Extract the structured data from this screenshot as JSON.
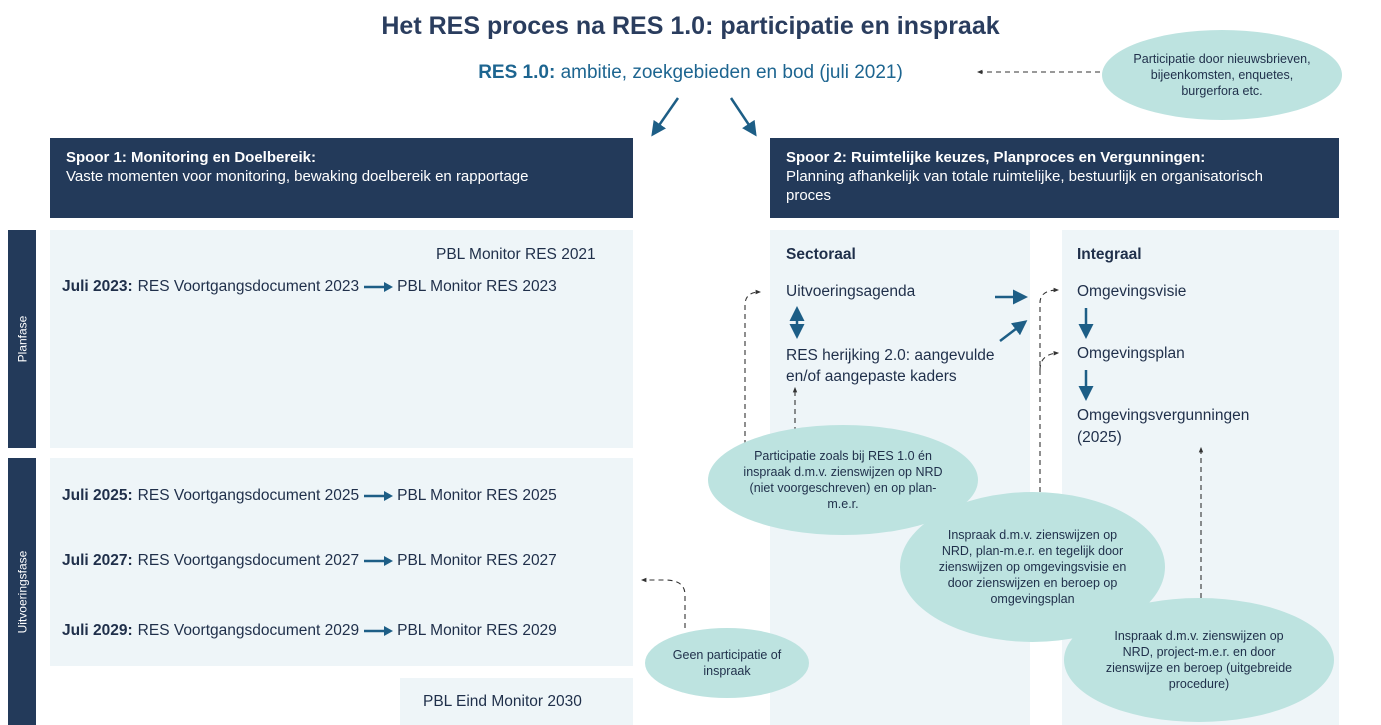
{
  "title": "Het RES proces na RES 1.0: participatie en inspraak",
  "res10": {
    "label": "RES 1.0:",
    "text": "ambitie, zoekgebieden en bod (juli 2021)"
  },
  "top_note": "Participatie door nieuwsbrieven, bijeenkomsten, enquetes, burgerfora etc.",
  "spoor1": {
    "title": "Spoor 1: Monitoring en Doelbereik:",
    "subtitle": "Vaste momenten voor monitoring, bewaking doelbereik en rapportage"
  },
  "spoor2": {
    "title": "Spoor 2: Ruimtelijke keuzes, Planproces en Vergunningen:",
    "subtitle": "Planning afhankelijk van totale ruimtelijke, bestuurlijk en organisatorisch proces"
  },
  "phases": [
    "Planfase",
    "Uitvoeringsfase"
  ],
  "monitor_2021": "PBL Monitor RES 2021",
  "rows": [
    {
      "date": "Juli 2023:",
      "document": "RES Voortgangsdocument 2023",
      "monitor": "PBL Monitor RES 2023"
    },
    {
      "date": "Juli 2025:",
      "document": "RES Voortgangsdocument 2025",
      "monitor": "PBL Monitor RES 2025"
    },
    {
      "date": "Juli 2027:",
      "document": "RES Voortgangsdocument 2027",
      "monitor": "PBL Monitor RES 2027"
    },
    {
      "date": "Juli 2029:",
      "document": "RES Voortgangsdocument 2029",
      "monitor": "PBL Monitor RES 2029"
    }
  ],
  "eind_monitor": "PBL Eind Monitor 2030",
  "sectoraal": {
    "title": "Sectoraal",
    "items": [
      "Uitvoeringsagenda",
      "RES herijking 2.0: aangevulde en/of aangepaste kaders"
    ]
  },
  "integraal": {
    "title": "Integraal",
    "items": [
      "Omgevingsvisie",
      "Omgevingsplan",
      "Omgevingsvergunningen (2025)"
    ]
  },
  "notes": [
    "Participatie zoals bij RES 1.0 én inspraak d.m.v. zienswijzen op NRD (niet voorgeschreven) en op plan-m.e.r.",
    "Inspraak d.m.v. zienswijzen op NRD, plan-m.e.r. en tegelijk door zienswijzen op omgevingsvisie en door zienswijzen en beroep op omgevingsplan",
    "Inspraak d.m.v. zienswijzen op NRD, project-m.e.r. en door zienswijze en beroep (uitgebreide procedure)",
    "Geen participatie of inspraak"
  ]
}
